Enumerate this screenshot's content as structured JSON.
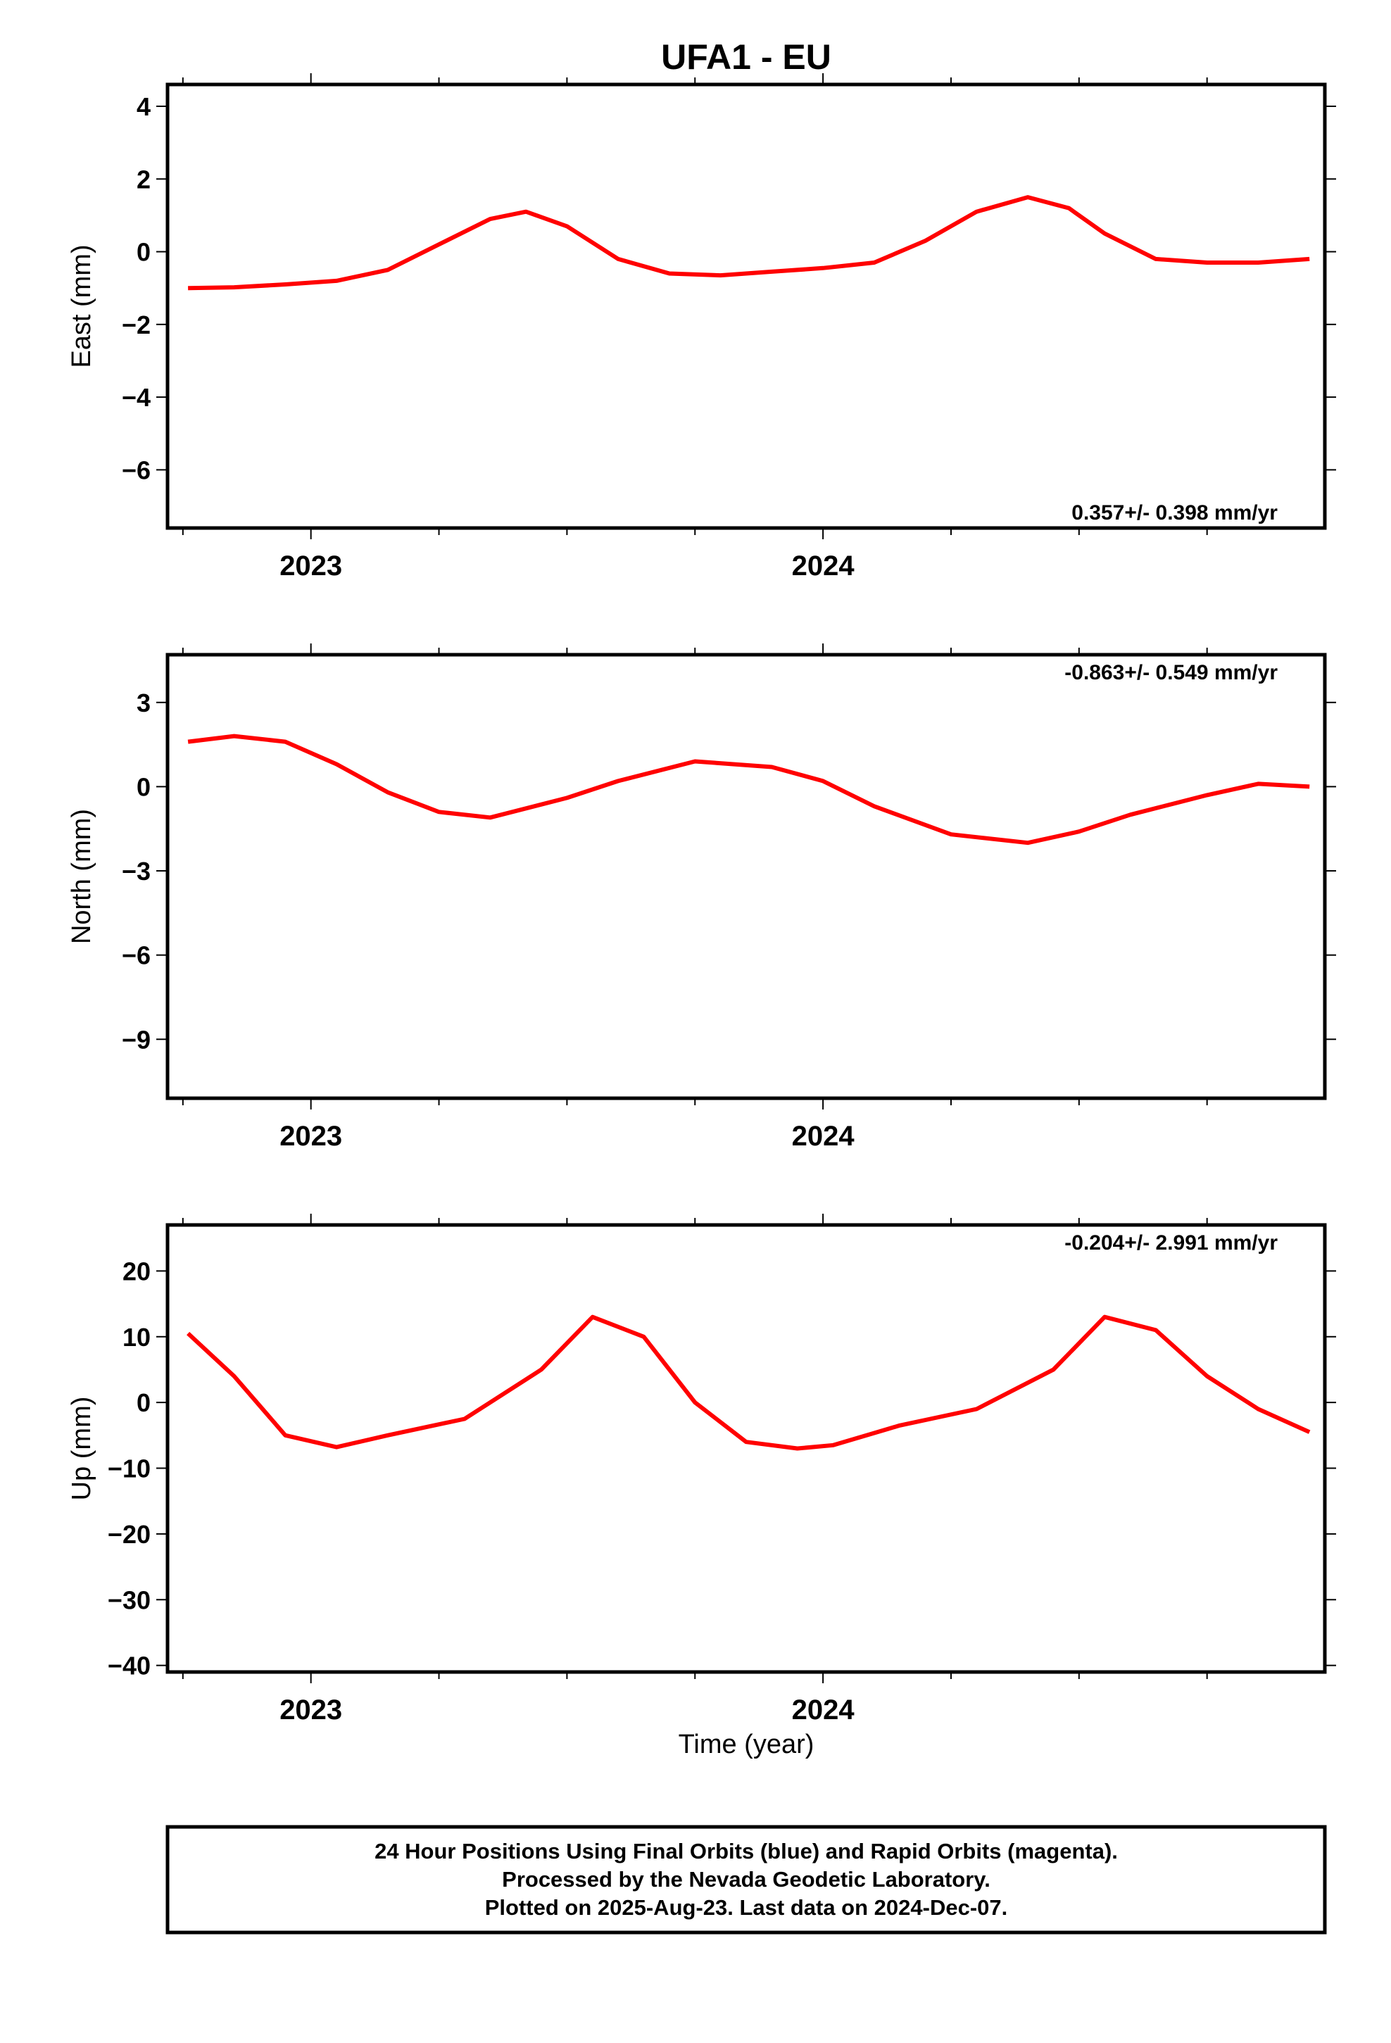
{
  "chart_data": {
    "title": "UFA1 - EU",
    "xlabel": "Time (year)",
    "xlim": [
      2022.72,
      2024.98
    ],
    "x_ticks": [
      "2023",
      "2024"
    ],
    "colors": {
      "final_orbits": "#0000ff",
      "fit_curve": "#ff0000",
      "axes": "#000000"
    },
    "panels": [
      {
        "type": "scatter",
        "ylabel": "East (mm)",
        "ylim": [
          -7.6,
          4.6
        ],
        "yticks": [
          4,
          2,
          0,
          -2,
          -4,
          -6
        ],
        "ytick_labels": [
          "4",
          "2",
          "0",
          "−2",
          "−4",
          "−6"
        ],
        "rate_label": "0.357+/- 0.398 mm/yr",
        "rate_position": "bottom-right",
        "fit": {
          "x": [
            2022.76,
            2022.85,
            2022.95,
            2023.05,
            2023.15,
            2023.25,
            2023.35,
            2023.42,
            2023.5,
            2023.6,
            2023.7,
            2023.8,
            2023.9,
            2024.0,
            2024.1,
            2024.2,
            2024.3,
            2024.4,
            2024.48,
            2024.55,
            2024.65,
            2024.75,
            2024.85,
            2024.95
          ],
          "y": [
            -1.0,
            -0.98,
            -0.9,
            -0.8,
            -0.5,
            0.2,
            0.9,
            1.1,
            0.7,
            -0.2,
            -0.6,
            -0.65,
            -0.55,
            -0.45,
            -0.3,
            0.3,
            1.1,
            1.5,
            1.2,
            0.5,
            -0.2,
            -0.3,
            -0.3,
            -0.2
          ]
        }
      },
      {
        "type": "scatter",
        "ylabel": "North (mm)",
        "ylim": [
          -11.1,
          4.7
        ],
        "yticks": [
          3,
          0,
          -3,
          -6,
          -9
        ],
        "ytick_labels": [
          "3",
          "0",
          "−3",
          "−6",
          "−9"
        ],
        "rate_label": "-0.863+/- 0.549 mm/yr",
        "rate_position": "top-right",
        "fit": {
          "x": [
            2022.76,
            2022.85,
            2022.95,
            2023.05,
            2023.15,
            2023.25,
            2023.35,
            2023.5,
            2023.6,
            2023.75,
            2023.9,
            2024.0,
            2024.1,
            2024.25,
            2024.4,
            2024.5,
            2024.6,
            2024.75,
            2024.85,
            2024.95
          ],
          "y": [
            1.6,
            1.8,
            1.6,
            0.8,
            -0.2,
            -0.9,
            -1.1,
            -0.4,
            0.2,
            0.9,
            0.7,
            0.2,
            -0.7,
            -1.7,
            -2.0,
            -1.6,
            -1.0,
            -0.3,
            0.1,
            0.0
          ]
        }
      },
      {
        "type": "scatter",
        "ylabel": "Up (mm)",
        "ylim": [
          -41,
          27
        ],
        "yticks": [
          20,
          10,
          0,
          -10,
          -20,
          -30,
          -40
        ],
        "ytick_labels": [
          "20",
          "10",
          "0",
          "−10",
          "−20",
          "−30",
          "−40"
        ],
        "rate_label": "-0.204+/- 2.991 mm/yr",
        "rate_position": "top-right",
        "fit": {
          "x": [
            2022.76,
            2022.85,
            2022.95,
            2023.05,
            2023.15,
            2023.3,
            2023.45,
            2023.55,
            2023.65,
            2023.75,
            2023.85,
            2023.95,
            2024.02,
            2024.15,
            2024.3,
            2024.45,
            2024.55,
            2024.65,
            2024.75,
            2024.85,
            2024.95
          ],
          "y": [
            10.5,
            4.0,
            -5.0,
            -6.8,
            -5.0,
            -2.5,
            5.0,
            13.0,
            10.0,
            0.0,
            -6.0,
            -7.0,
            -6.5,
            -3.5,
            -1.0,
            5.0,
            13.0,
            11.0,
            4.0,
            -1.0,
            -4.5
          ]
        }
      }
    ]
  },
  "footer": {
    "lines": [
      "24 Hour Positions Using Final Orbits (blue) and Rapid Orbits (magenta).",
      "Processed by the Nevada Geodetic Laboratory.",
      "Plotted on 2025-Aug-23. Last data on 2024-Dec-07."
    ]
  }
}
